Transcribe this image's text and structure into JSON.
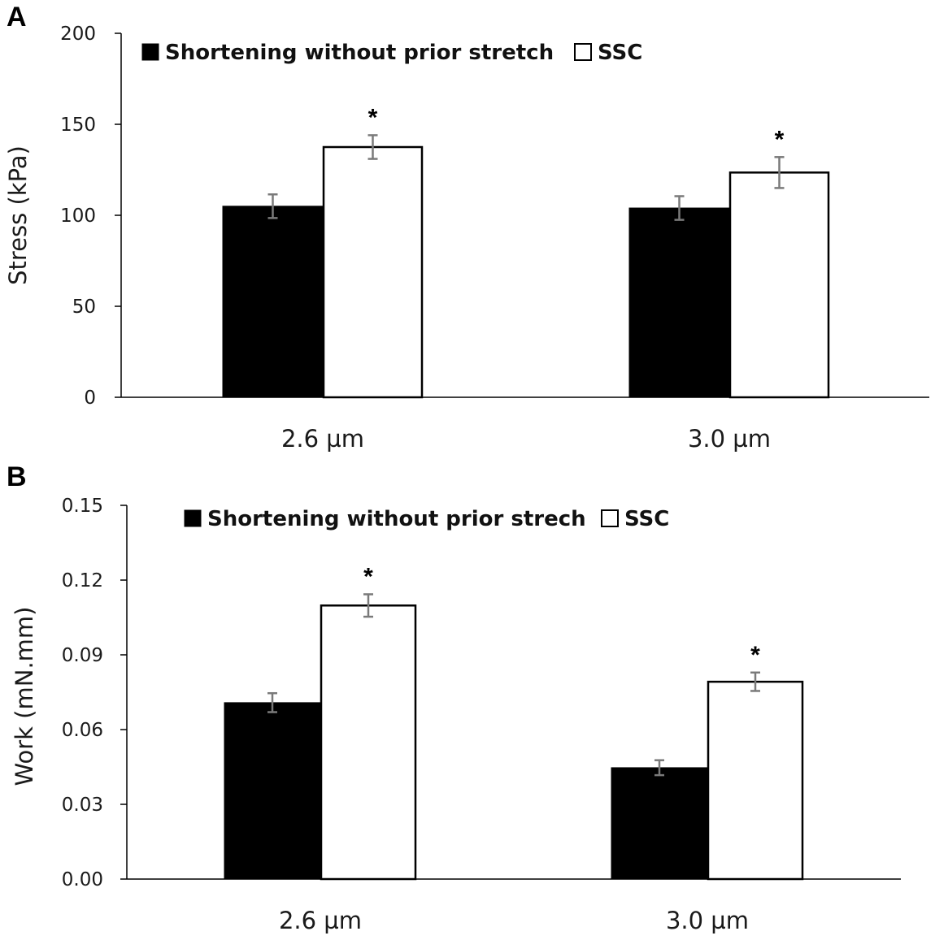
{
  "chart_data": [
    {
      "panel": "A",
      "type": "bar",
      "ylabel": "Stress (kPa)",
      "xlabel": "",
      "ylim": [
        0,
        200
      ],
      "yticks": [
        "0",
        "50",
        "100",
        "150",
        "200"
      ],
      "categories": [
        "2.6 µm",
        "3.0 µm"
      ],
      "series": [
        {
          "name": "Shortening without prior stretch",
          "color": "#000000",
          "values": [
            105,
            104
          ],
          "errors": [
            6.5,
            6.5
          ]
        },
        {
          "name": "SSC",
          "color": "#ffffff",
          "values": [
            137.5,
            123.5
          ],
          "errors": [
            6.5,
            8.5
          ]
        }
      ],
      "annotations": [
        "*",
        "*"
      ],
      "legend_position": "top-left"
    },
    {
      "panel": "B",
      "type": "bar",
      "ylabel": "Work (mN.mm)",
      "xlabel": "",
      "ylim": [
        0,
        0.15
      ],
      "yticks": [
        "0.00",
        "0.03",
        "0.06",
        "0.09",
        "0.12",
        "0.15"
      ],
      "categories": [
        "2.6 µm",
        "3.0 µm"
      ],
      "series": [
        {
          "name": "Shortening without prior strech",
          "color": "#000000",
          "values": [
            0.0708,
            0.0447
          ],
          "errors": [
            0.0038,
            0.003
          ]
        },
        {
          "name": "SSC",
          "color": "#ffffff",
          "values": [
            0.1098,
            0.0792
          ],
          "errors": [
            0.0045,
            0.0037
          ]
        }
      ],
      "annotations": [
        "*",
        "*"
      ],
      "legend_position": "top-left"
    }
  ]
}
